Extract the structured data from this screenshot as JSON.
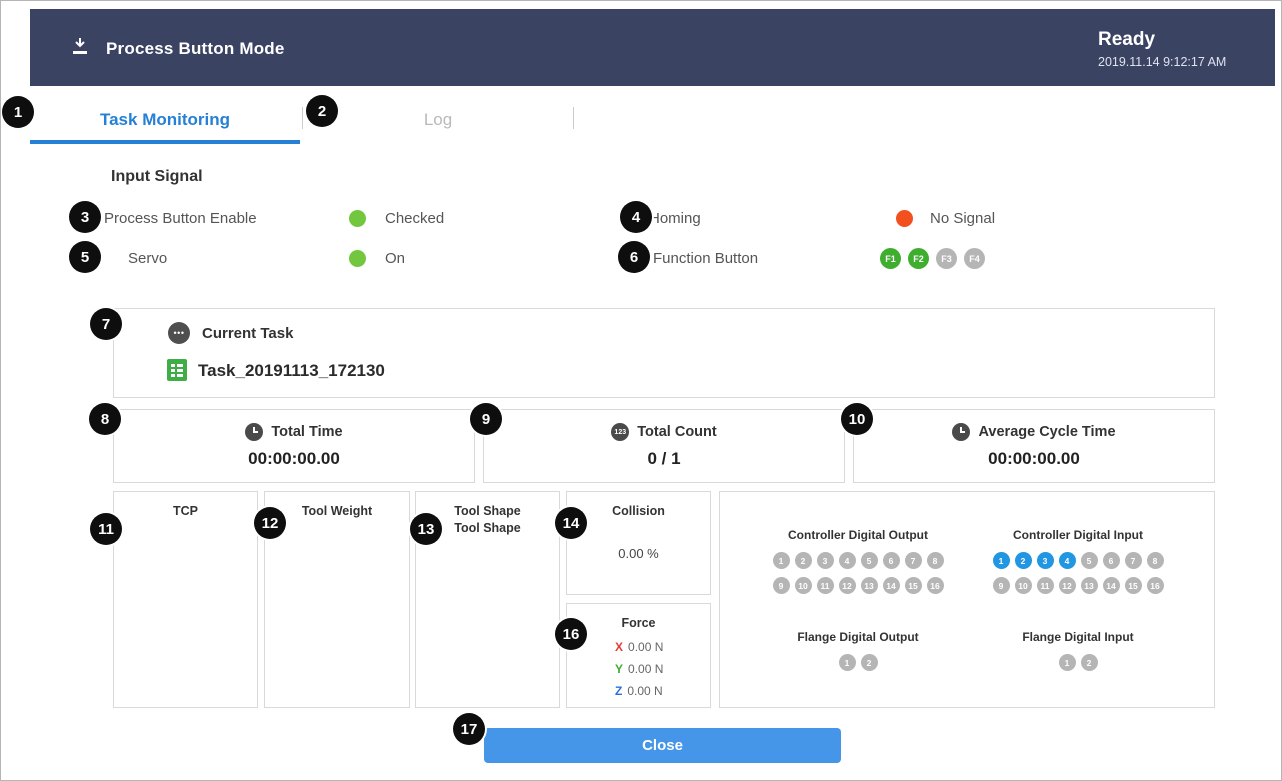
{
  "header": {
    "title": "Process Button Mode",
    "status": "Ready",
    "datetime": "2019.11.14 9:12:17 AM",
    "icon": "process-button-icon"
  },
  "tabs": {
    "task_monitoring": "Task Monitoring",
    "log": "Log"
  },
  "input_signal": {
    "title": "Input Signal",
    "process_button_enable": {
      "label": "Process Button Enable",
      "status": "Checked",
      "dot_color": "#72c73e"
    },
    "homing": {
      "label": "Homing",
      "status": "No Signal",
      "dot_color": "#f2501f"
    },
    "servo": {
      "label": "Servo",
      "status": "On",
      "dot_color": "#72c73e"
    },
    "function_button": {
      "label": "Function Button",
      "buttons": [
        {
          "label": "F1",
          "on": true
        },
        {
          "label": "F2",
          "on": true
        },
        {
          "label": "F3",
          "on": false
        },
        {
          "label": "F4",
          "on": false
        }
      ]
    }
  },
  "current_task": {
    "label": "Current Task",
    "task_name": "Task_20191113_172130",
    "icon": "task-file-icon"
  },
  "stats": {
    "total_time": {
      "label": "Total Time",
      "value": "00:00:00.00",
      "icon": "clock-icon"
    },
    "total_count": {
      "label": "Total Count",
      "value": "0 / 1",
      "icon": "123-icon"
    },
    "average_cycle_time": {
      "label": "Average Cycle Time",
      "value": "00:00:00.00",
      "icon": "cycle-clock-icon"
    }
  },
  "panels": {
    "tcp": {
      "title": "TCP"
    },
    "tool_weight": {
      "title": "Tool Weight"
    },
    "tool_shape": {
      "title": "Tool Shape",
      "subtitle": "Tool Shape"
    },
    "collision": {
      "title": "Collision",
      "value": "0.00 %"
    },
    "force": {
      "title": "Force",
      "rows": [
        {
          "axis": "X",
          "value": "0.00 N"
        },
        {
          "axis": "Y",
          "value": "0.00 N"
        },
        {
          "axis": "Z",
          "value": "0.00 N"
        }
      ]
    }
  },
  "dio": {
    "controller_output": {
      "title": "Controller Digital Output",
      "count": 16,
      "on": []
    },
    "controller_input": {
      "title": "Controller Digital Input",
      "count": 16,
      "on": [
        1,
        2,
        3,
        4
      ]
    },
    "flange_output": {
      "title": "Flange Digital Output",
      "count": 2,
      "on": []
    },
    "flange_input": {
      "title": "Flange Digital Input",
      "count": 2,
      "on": []
    }
  },
  "close_button": "Close",
  "callouts": [
    "1",
    "2",
    "3",
    "4",
    "5",
    "6",
    "7",
    "8",
    "9",
    "10",
    "11",
    "12",
    "13",
    "14",
    "16",
    "17"
  ],
  "colors": {
    "header_bg": "#3b4363",
    "accent_blue": "#2580d6",
    "signal_green": "#72c73e",
    "signal_red": "#f2501f",
    "function_green": "#3fae2f",
    "dio_gray": "#b5b5b5",
    "dio_blue": "#2196e3",
    "close_blue": "#4596e8"
  }
}
